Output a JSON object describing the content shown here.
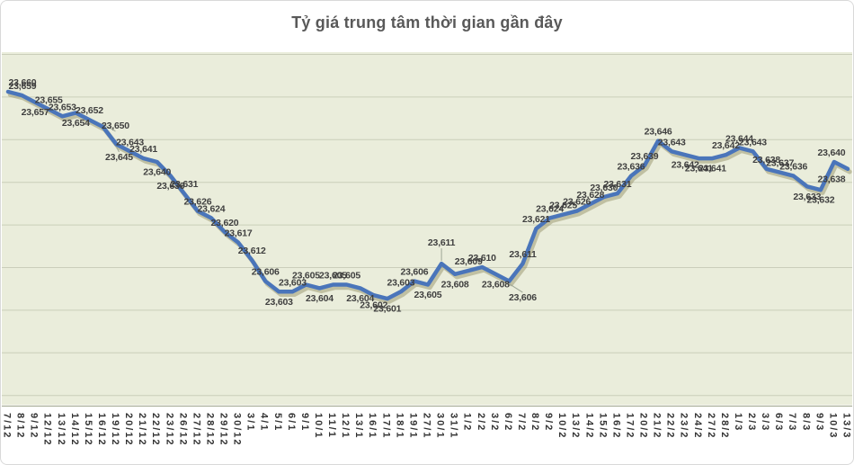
{
  "title": "Tỷ giá trung tâm thời gian gần đây",
  "chart_data": {
    "type": "line",
    "title": "Tỷ giá trung tâm thời gian gần đây",
    "xlabel": "",
    "ylabel": "",
    "legend": "none",
    "grid": "horizontal",
    "y_axis_visible": false,
    "ylim": [
      23595,
      23672
    ],
    "x": [
      "7/12",
      "8/12",
      "9/12",
      "12/12",
      "13/12",
      "14/12",
      "15/12",
      "16/12",
      "19/12",
      "20/12",
      "21/12",
      "22/12",
      "23/12",
      "26/12",
      "27/12",
      "28/12",
      "29/12",
      "30/12",
      "3/1",
      "4/1",
      "5/1",
      "6/1",
      "9/1",
      "10/1",
      "11/1",
      "12/1",
      "13/1",
      "16/1",
      "17/1",
      "18/1",
      "19/1",
      "27/1",
      "30/1",
      "31/1",
      "1/2",
      "2/2",
      "3/2",
      "6/2",
      "7/2",
      "8/2",
      "9/2",
      "10/2",
      "13/2",
      "14/2",
      "15/2",
      "16/2",
      "17/2",
      "20/2",
      "21/2",
      "22/2",
      "23/2",
      "24/2",
      "27/2",
      "28/2",
      "1/3",
      "2/3",
      "3/3",
      "6/3",
      "7/3",
      "8/3",
      "9/3",
      "10/3",
      "13/3"
    ],
    "values": [
      23660,
      23659,
      23657,
      23655,
      23653,
      23654,
      23652,
      23650,
      23645,
      23643,
      23641,
      23640,
      23636,
      23631,
      23626,
      23624,
      23620,
      23617,
      23612,
      23606,
      23603,
      23603,
      23605,
      23604,
      23605,
      23605,
      23604,
      23602,
      23601,
      23603,
      23606,
      23605,
      23611,
      23608,
      23609,
      23610,
      23608,
      23606,
      23611,
      23621,
      23624,
      23625,
      23626,
      23628,
      23630,
      23631,
      23636,
      23639,
      23646,
      23643,
      23642,
      23641,
      23641,
      23642,
      23644,
      23643,
      23638,
      23637,
      23636,
      23633,
      23632,
      23640,
      23638
    ],
    "label_pos": [
      "above",
      "above",
      "below",
      "above",
      "above",
      "below",
      "above",
      "above",
      "below",
      "above",
      "above",
      "below",
      "below",
      "above",
      "above",
      "above",
      "above",
      "above",
      "above",
      "above",
      "below",
      "above",
      "above",
      "below",
      "above",
      "above",
      "below",
      "below",
      "below",
      "above",
      "above",
      "below",
      "above",
      "below",
      "above",
      "above",
      "below",
      "below",
      "above",
      "above",
      "above",
      "above",
      "above",
      "above",
      "above",
      "above",
      "above",
      "above",
      "above",
      "above",
      "below",
      "below",
      "below",
      "above",
      "above",
      "above",
      "above",
      "above",
      "above",
      "below",
      "below",
      "above",
      "below"
    ],
    "colors": {
      "line": "#4a75ba",
      "line_shadow": "#8f8a5e",
      "plot_bg": "#eaeddb",
      "gridline": "#caceba",
      "axis_line": "#a9ae97",
      "data_label": "#3f3f3f",
      "title": "#595959"
    }
  }
}
